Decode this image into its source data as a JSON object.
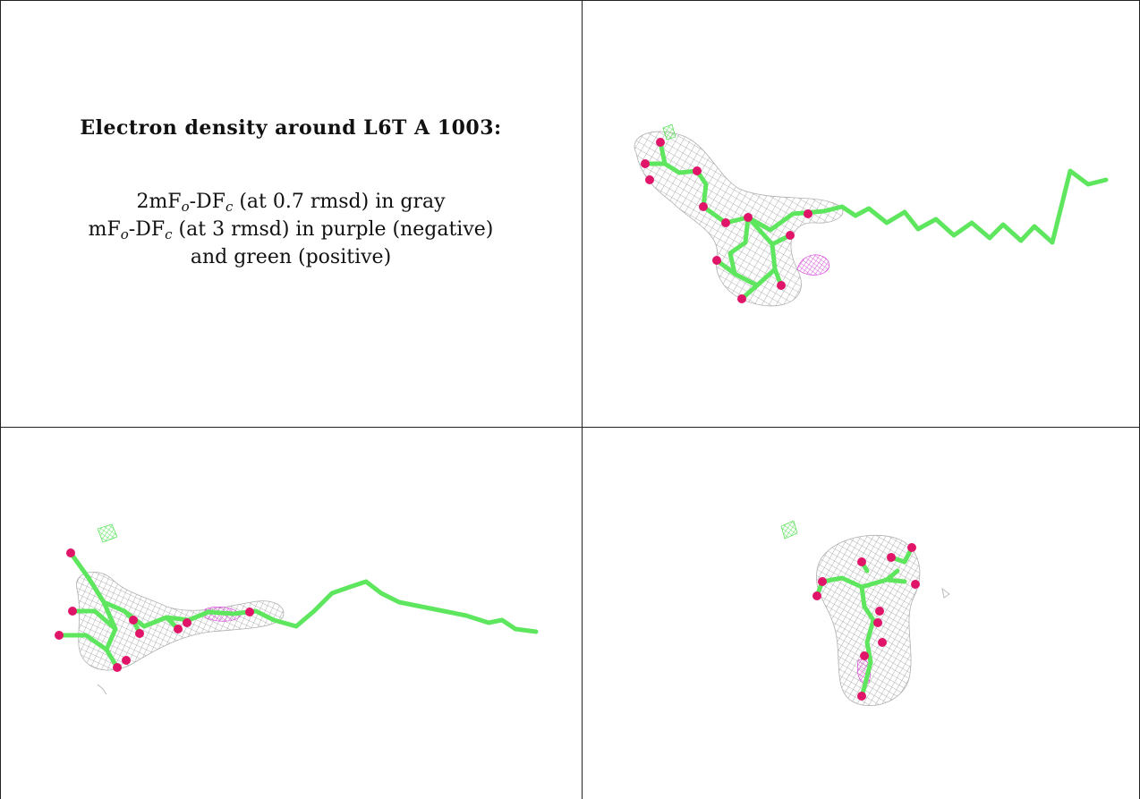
{
  "title": "Electron density around L6T A 1003:",
  "legend": {
    "line1_a": "2mF",
    "line1_sub1": "o",
    "line1_b": "-DF",
    "line1_sub2": "c",
    "line1_c": " (at 0.7 rmsd) in gray",
    "line2_a": "mF",
    "line2_sub1": "o",
    "line2_b": "-DF",
    "line2_sub2": "c",
    "line2_c": " (at 3 rmsd) in purple (negative)",
    "line3": "and green (positive)"
  },
  "colors": {
    "carbon_stick": "#5ee65e",
    "oxygen_atom": "#e0156a",
    "mesh_2fofc": "#9a9a9a",
    "mesh_negative": "#d633d6",
    "mesh_positive": "#33dd33",
    "border": "#222222"
  },
  "panels": [
    {
      "name": "view-1",
      "description": "ligand stick model with gray density mesh, long tail to the right"
    },
    {
      "name": "view-2",
      "description": "side view with long horizontal tail"
    },
    {
      "name": "view-3",
      "description": "end-on view of head group"
    }
  ]
}
